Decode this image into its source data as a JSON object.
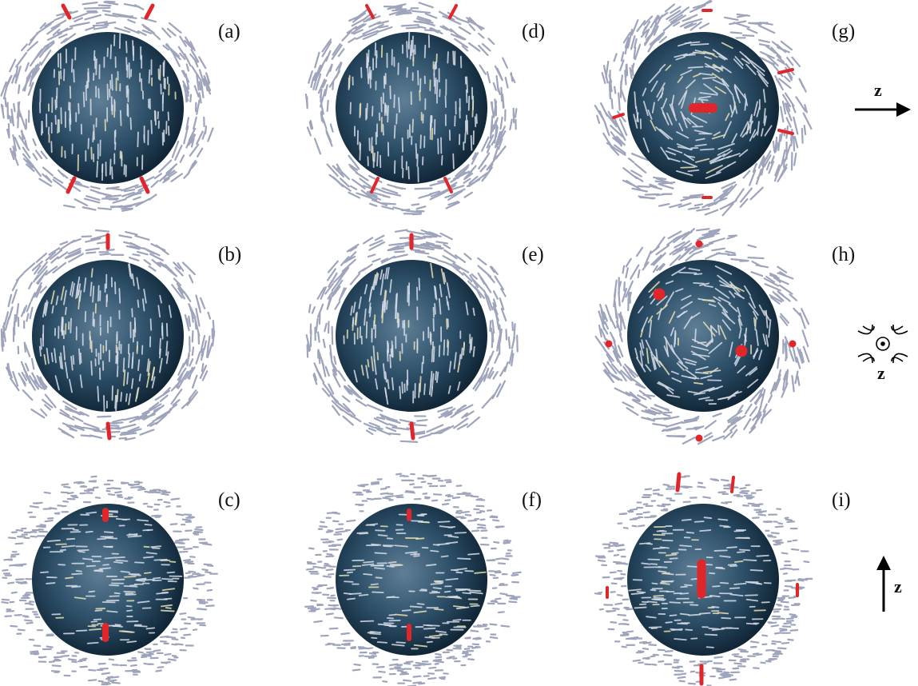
{
  "panels": [
    {
      "id": "a",
      "label": "(a)",
      "style": "uniaxial-x",
      "defects": "four-corners"
    },
    {
      "id": "b",
      "label": "(b)",
      "style": "bipolar-z",
      "defects": "poles"
    },
    {
      "id": "c",
      "label": "(c)",
      "style": "radial-dots",
      "defects": "inner-two"
    },
    {
      "id": "d",
      "label": "(d)",
      "style": "uniaxial-x",
      "defects": "four-corners-small"
    },
    {
      "id": "e",
      "label": "(e)",
      "style": "bipolar-z",
      "defects": "poles"
    },
    {
      "id": "f",
      "label": "(f)",
      "style": "radial-dots",
      "defects": "inner-two-small"
    },
    {
      "id": "g",
      "label": "(g)",
      "style": "twisted",
      "defects": "center-horizontal"
    },
    {
      "id": "h",
      "label": "(h)",
      "style": "twisted",
      "defects": "scattered"
    },
    {
      "id": "i",
      "label": "(i)",
      "style": "radial-dots",
      "defects": "center-vertical"
    }
  ],
  "axis_labels": {
    "row1": "z",
    "row2": "z",
    "row3": "z"
  },
  "colors": {
    "sphere_dark": "#0c1f2e",
    "sphere_mid": "#2b4d66",
    "sphere_light": "#5e7f96",
    "director_line": "#9ea4bb",
    "director_inner": "#d7dde8",
    "director_yellow": "#e8e0b0",
    "defect": "#e0262a"
  }
}
